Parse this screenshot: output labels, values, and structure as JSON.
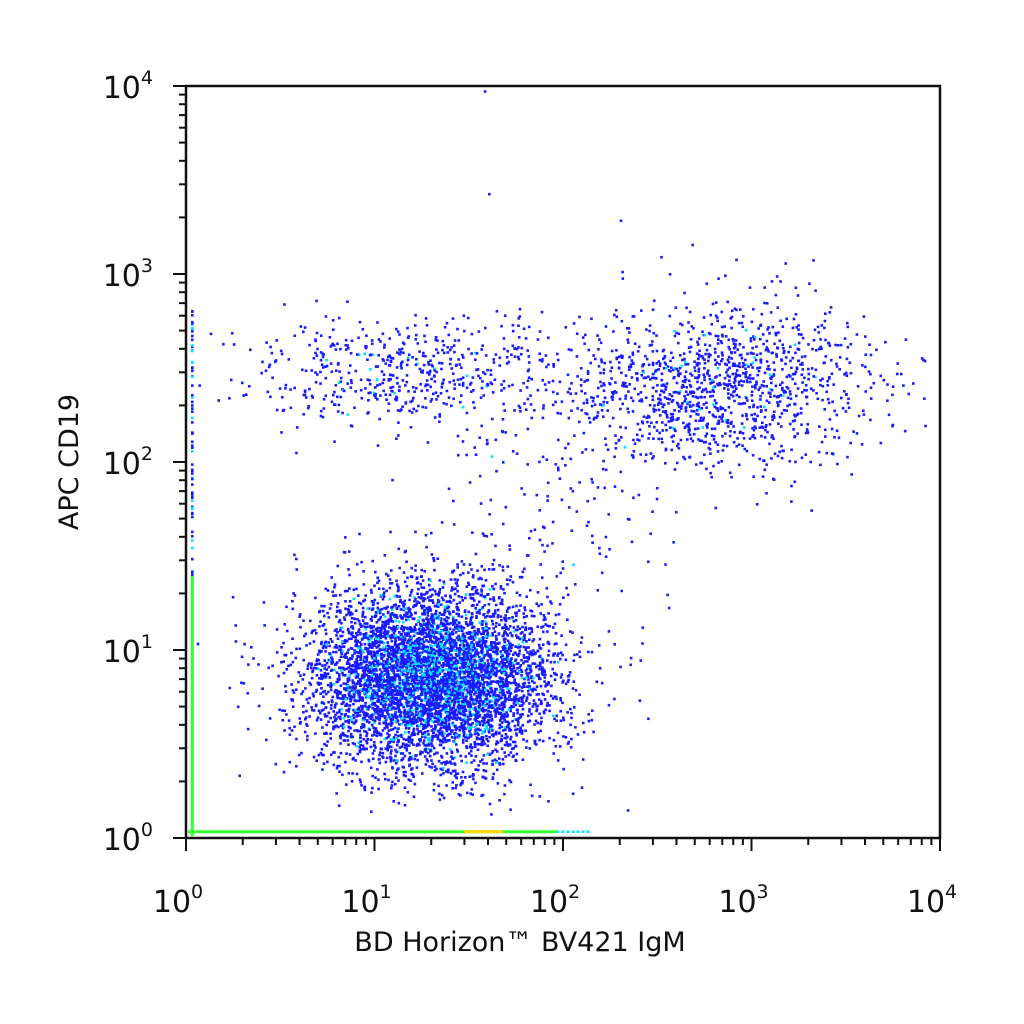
{
  "chart_data": {
    "type": "scatter",
    "subtype": "flow-cytometry-pseudocolor-dot-plot",
    "xlabel": "BD Horizon™ BV421 IgM",
    "ylabel": "APC CD19",
    "x_scale": "log",
    "y_scale": "log",
    "xlim": [
      1,
      10000
    ],
    "ylim": [
      1,
      10000
    ],
    "x_ticks": [
      {
        "base": "10",
        "exp": "0",
        "value": 1
      },
      {
        "base": "10",
        "exp": "1",
        "value": 10
      },
      {
        "base": "10",
        "exp": "2",
        "value": 100
      },
      {
        "base": "10",
        "exp": "3",
        "value": 1000
      },
      {
        "base": "10",
        "exp": "4",
        "value": 10000
      }
    ],
    "y_ticks": [
      {
        "base": "10",
        "exp": "0",
        "value": 1
      },
      {
        "base": "10",
        "exp": "1",
        "value": 10
      },
      {
        "base": "10",
        "exp": "2",
        "value": 100
      },
      {
        "base": "10",
        "exp": "3",
        "value": 1000
      },
      {
        "base": "10",
        "exp": "4",
        "value": 10000
      }
    ],
    "grid": false,
    "legend": "none",
    "color_scale": [
      "#1a1aff",
      "#00e5ff",
      "#33ff33",
      "#ffd700",
      "#ff3300"
    ],
    "populations": [
      {
        "id": "IgM-low CD19-low",
        "x_log10_center": 1.3,
        "y_log10_center": 0.86,
        "x_log10_sd": 0.32,
        "y_log10_sd": 0.24,
        "approx_events": 6000
      },
      {
        "id": "IgM-high CD19-high",
        "x_log10_center": 2.8,
        "y_log10_center": 2.4,
        "x_log10_sd": 0.42,
        "y_log10_sd": 0.22,
        "approx_events": 1300
      },
      {
        "id": "IgM-low CD19-high",
        "x_log10_center": 1.2,
        "y_log10_center": 2.48,
        "x_log10_sd": 0.45,
        "y_log10_sd": 0.15,
        "approx_events": 550
      },
      {
        "id": "bridge",
        "x_log10_center": 1.9,
        "y_log10_center": 1.8,
        "x_log10_sd": 0.3,
        "y_log10_sd": 0.3,
        "approx_events": 140
      }
    ],
    "axis_pileup": {
      "x_axis_y_value": 1.08,
      "y_axis_x_value": 1.08,
      "x_range": [
        1,
        140
      ],
      "y_range": [
        1,
        25
      ],
      "colors": [
        "#33ff33",
        "#ffd700"
      ]
    },
    "outliers": [
      {
        "x": 38,
        "y": 9500
      },
      {
        "x": 40,
        "y": 2700
      },
      {
        "x": 200,
        "y": 1950
      },
      {
        "x": 480,
        "y": 1450
      },
      {
        "x": 2100,
        "y": 1200
      },
      {
        "x": 8200,
        "y": 350
      },
      {
        "x": 380,
        "y": 38
      },
      {
        "x": 140,
        "y": 4.3
      },
      {
        "x": 360,
        "y": 17
      },
      {
        "x": 260,
        "y": 11
      }
    ]
  }
}
